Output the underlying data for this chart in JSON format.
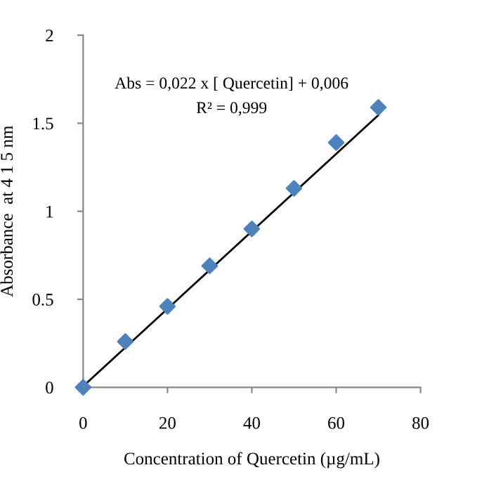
{
  "chart_data": {
    "type": "scatter",
    "xlabel": "Concentration of Quercetin (µg/mL)",
    "ylabel": "Absorbance  at 4 1 5 nm",
    "series": [
      {
        "color": "#4f81bd",
        "marker": "diamond",
        "x": [
          0,
          10,
          20,
          30,
          40,
          50,
          60,
          70
        ],
        "values": [
          0,
          0.26,
          0.46,
          0.69,
          0.9,
          1.13,
          1.39,
          1.59
        ]
      },
      {
        "type": "line",
        "color": "#000000",
        "x": [
          0,
          70
        ],
        "values": [
          0.006,
          1.546
        ]
      }
    ],
    "annotations": [
      "Abs = 0,022 x [ Quercetin] + 0,006",
      "R² = 0,999"
    ],
    "xlim": [
      0,
      80
    ],
    "xticks": [
      0,
      20,
      40,
      60,
      80
    ],
    "ylim": [
      0,
      2
    ],
    "yticks": [
      0,
      0.5,
      1,
      1.5,
      2
    ],
    "grid": false,
    "legend": false
  }
}
